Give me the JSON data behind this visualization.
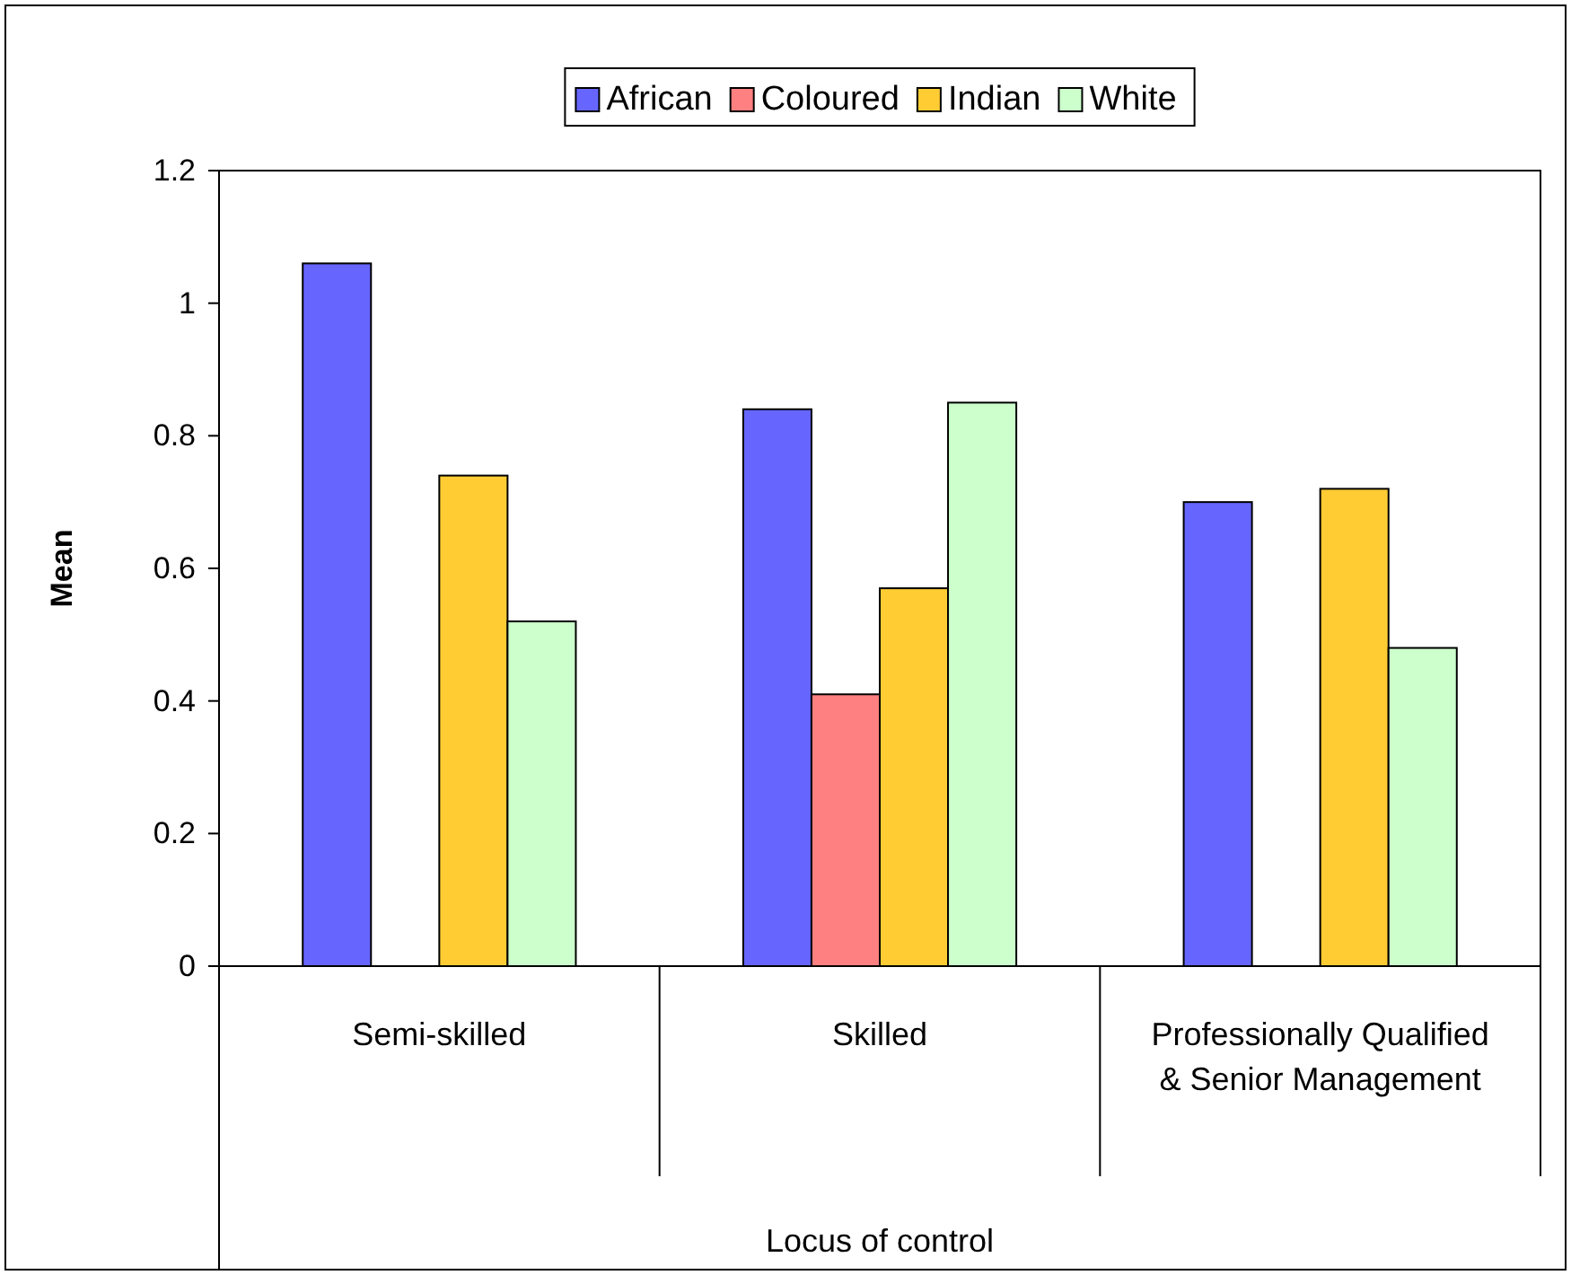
{
  "chart_data": {
    "type": "bar",
    "categories": [
      "Semi-skilled",
      "Skilled",
      "Professionally Qualified & Senior Management"
    ],
    "series": [
      {
        "name": "African",
        "color": "#6666ff",
        "values": [
          1.06,
          0.84,
          0.7
        ]
      },
      {
        "name": "Coloured",
        "color": "#ff8080",
        "values": [
          null,
          0.41,
          null
        ]
      },
      {
        "name": "Indian",
        "color": "#ffcc33",
        "values": [
          0.74,
          0.57,
          0.72
        ]
      },
      {
        "name": "White",
        "color": "#ccffcc",
        "values": [
          0.52,
          0.85,
          0.48
        ]
      }
    ],
    "xlabel": "Locus of control",
    "ylabel": "Mean",
    "ylim": [
      0,
      1.2
    ],
    "yticks": [
      0,
      0.2,
      0.4,
      0.6,
      0.8,
      1,
      1.2
    ],
    "legend": "top"
  }
}
